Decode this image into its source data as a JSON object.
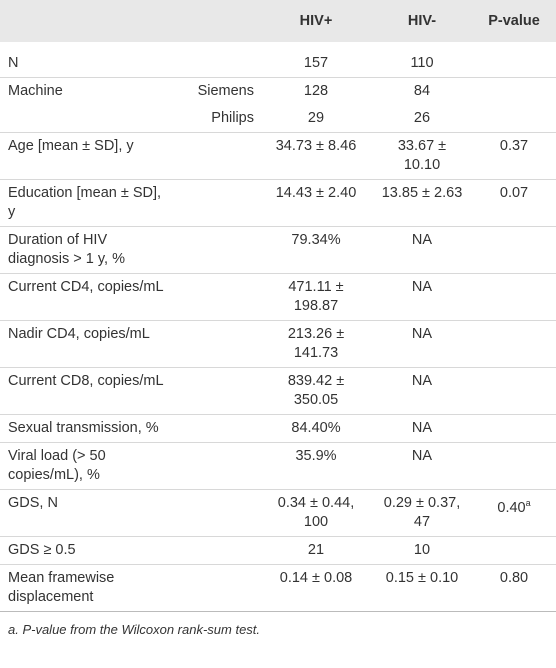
{
  "table": {
    "header": [
      null,
      null,
      "HIV+",
      "HIV-",
      "P-value"
    ],
    "rows": [
      [
        "N",
        null,
        "157",
        "110",
        null
      ],
      [
        "Machine",
        "Siemens",
        "128",
        "84",
        null
      ],
      [
        null,
        "Philips",
        "29",
        "26",
        null
      ],
      [
        "Age [mean ± SD], y",
        null,
        "34.73 ± 8.46",
        "33.67 ± 10.10",
        "0.37"
      ],
      [
        "Education [mean ± SD], y",
        null,
        "14.43 ± 2.40",
        "13.85 ± 2.63",
        "0.07"
      ],
      [
        "Duration of HIV diagnosis > 1 y, %",
        null,
        "79.34%",
        "NA",
        null
      ],
      [
        "Current CD4, copies/mL",
        null,
        "471.11 ± 198.87",
        "NA",
        null
      ],
      [
        "Nadir CD4, copies/mL",
        null,
        "213.26 ± 141.73",
        "NA",
        null
      ],
      [
        "Current CD8, copies/mL",
        null,
        "839.42 ± 350.05",
        "NA",
        null
      ],
      [
        "Sexual transmission, %",
        null,
        "84.40%",
        "NA",
        null
      ],
      [
        "Viral load (> 50 copies/mL), %",
        null,
        "35.9%",
        "NA",
        null
      ],
      [
        "GDS, N",
        null,
        "0.34 ± 0.44, 100",
        "0.29 ± 0.37, 47",
        {
          "text": "0.40",
          "note": "a"
        }
      ],
      [
        "GDS ≥ 0.5",
        null,
        "21",
        "10",
        null
      ],
      [
        "Mean framewise displacement",
        null,
        "0.14 ± 0.08",
        "0.15 ± 0.10",
        "0.80"
      ]
    ],
    "footnote": "a. P-value from the Wilcoxon rank-sum test."
  }
}
